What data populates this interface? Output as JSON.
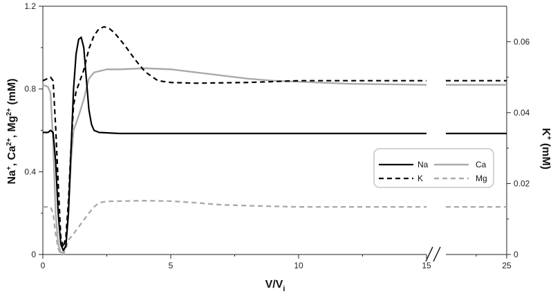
{
  "chart_data": {
    "type": "line",
    "xlabel_main": "V/V",
    "xlabel_sub": "i",
    "ylabel_left": [
      "Na",
      "+",
      ", Ca",
      "2+",
      ", Mg",
      "2+",
      " (mM)"
    ],
    "ylabel_right": [
      "K",
      "+",
      " (mM)"
    ],
    "x_segment1_range": [
      0,
      15
    ],
    "x_segment2_range": [
      15,
      25
    ],
    "x_ticks": [
      {
        "value": 0,
        "label": "0"
      },
      {
        "value": 5,
        "label": "5"
      },
      {
        "value": 10,
        "label": "10"
      },
      {
        "value": 15,
        "label": "15"
      },
      {
        "value": 25,
        "label": "25"
      }
    ],
    "ylim_left": [
      0,
      1.2
    ],
    "y_ticks_left": [
      {
        "value": 0,
        "label": "0"
      },
      {
        "value": 0.4,
        "label": "0.4"
      },
      {
        "value": 0.8,
        "label": "0.8"
      },
      {
        "value": 1.2,
        "label": "1.2"
      }
    ],
    "ylim_right": [
      0,
      0.07
    ],
    "y_ticks_right": [
      {
        "value": 0,
        "label": "0"
      },
      {
        "value": 0.02,
        "label": "0.02"
      },
      {
        "value": 0.04,
        "label": "0.04"
      },
      {
        "value": 0.06,
        "label": "0.06"
      }
    ],
    "legend_position": "right-middle",
    "series": [
      {
        "name": "Na",
        "axis": "left",
        "color": "#000000",
        "dash": "solid",
        "points": [
          [
            0,
            0.59
          ],
          [
            0.2,
            0.59
          ],
          [
            0.3,
            0.6
          ],
          [
            0.4,
            0.59
          ],
          [
            0.5,
            0.45
          ],
          [
            0.6,
            0.2
          ],
          [
            0.7,
            0.05
          ],
          [
            0.8,
            0.02
          ],
          [
            0.9,
            0.04
          ],
          [
            1.0,
            0.2
          ],
          [
            1.1,
            0.5
          ],
          [
            1.2,
            0.8
          ],
          [
            1.3,
            0.97
          ],
          [
            1.4,
            1.04
          ],
          [
            1.5,
            1.05
          ],
          [
            1.6,
            1.0
          ],
          [
            1.7,
            0.85
          ],
          [
            1.8,
            0.7
          ],
          [
            1.9,
            0.63
          ],
          [
            2.0,
            0.6
          ],
          [
            2.2,
            0.59
          ],
          [
            3,
            0.585
          ],
          [
            5,
            0.585
          ],
          [
            8,
            0.585
          ],
          [
            10,
            0.585
          ],
          [
            15,
            0.585
          ]
        ],
        "points_seg2": [
          [
            15,
            0.585
          ],
          [
            25,
            0.585
          ]
        ]
      },
      {
        "name": "Ca",
        "axis": "left",
        "color": "#aaaaaa",
        "dash": "solid",
        "points": [
          [
            0,
            0.82
          ],
          [
            0.2,
            0.81
          ],
          [
            0.3,
            0.78
          ],
          [
            0.4,
            0.55
          ],
          [
            0.5,
            0.2
          ],
          [
            0.6,
            0.05
          ],
          [
            0.7,
            0.01
          ],
          [
            0.8,
            0.01
          ],
          [
            0.9,
            0.05
          ],
          [
            1.0,
            0.2
          ],
          [
            1.1,
            0.45
          ],
          [
            1.2,
            0.6
          ],
          [
            1.4,
            0.67
          ],
          [
            1.6,
            0.75
          ],
          [
            1.8,
            0.85
          ],
          [
            2.0,
            0.88
          ],
          [
            2.5,
            0.895
          ],
          [
            3,
            0.895
          ],
          [
            4,
            0.9
          ],
          [
            5,
            0.895
          ],
          [
            6,
            0.88
          ],
          [
            7,
            0.865
          ],
          [
            8,
            0.85
          ],
          [
            9,
            0.84
          ],
          [
            10,
            0.835
          ],
          [
            12,
            0.825
          ],
          [
            15,
            0.82
          ]
        ],
        "points_seg2": [
          [
            15,
            0.82
          ],
          [
            25,
            0.82
          ]
        ]
      },
      {
        "name": "K",
        "axis": "right",
        "color": "#000000",
        "dash": "dashed",
        "points": [
          [
            0,
            0.049
          ],
          [
            0.3,
            0.05
          ],
          [
            0.4,
            0.049
          ],
          [
            0.5,
            0.036
          ],
          [
            0.6,
            0.02
          ],
          [
            0.7,
            0.005
          ],
          [
            0.8,
            0.002
          ],
          [
            0.9,
            0.005
          ],
          [
            1.0,
            0.015
          ],
          [
            1.1,
            0.03
          ],
          [
            1.2,
            0.042
          ],
          [
            1.3,
            0.046
          ],
          [
            1.4,
            0.048
          ],
          [
            1.6,
            0.052
          ],
          [
            1.8,
            0.058
          ],
          [
            2.0,
            0.0617
          ],
          [
            2.2,
            0.0637
          ],
          [
            2.4,
            0.0642
          ],
          [
            2.6,
            0.0637
          ],
          [
            2.8,
            0.0625
          ],
          [
            3.2,
            0.059
          ],
          [
            3.6,
            0.055
          ],
          [
            4.0,
            0.0515
          ],
          [
            4.5,
            0.049
          ],
          [
            5,
            0.0485
          ],
          [
            6,
            0.0483
          ],
          [
            8,
            0.0485
          ],
          [
            10,
            0.049
          ],
          [
            12,
            0.049
          ],
          [
            15,
            0.049
          ]
        ],
        "points_seg2": [
          [
            15,
            0.049
          ],
          [
            25,
            0.049
          ]
        ]
      },
      {
        "name": "Mg",
        "axis": "left",
        "color": "#aaaaaa",
        "dash": "dashed",
        "points": [
          [
            0,
            0.23
          ],
          [
            0.3,
            0.23
          ],
          [
            0.4,
            0.2
          ],
          [
            0.5,
            0.1
          ],
          [
            0.6,
            0.03
          ],
          [
            0.7,
            0.0
          ],
          [
            0.8,
            0.0
          ],
          [
            0.9,
            0.03
          ],
          [
            1.0,
            0.07
          ],
          [
            1.2,
            0.1
          ],
          [
            1.5,
            0.15
          ],
          [
            1.8,
            0.2
          ],
          [
            2.0,
            0.23
          ],
          [
            2.2,
            0.25
          ],
          [
            2.5,
            0.257
          ],
          [
            3,
            0.258
          ],
          [
            4,
            0.26
          ],
          [
            5,
            0.258
          ],
          [
            6,
            0.25
          ],
          [
            7,
            0.24
          ],
          [
            8,
            0.236
          ],
          [
            9,
            0.233
          ],
          [
            10,
            0.23
          ],
          [
            15,
            0.23
          ]
        ],
        "points_seg2": [
          [
            15,
            0.23
          ],
          [
            25,
            0.23
          ]
        ]
      }
    ]
  }
}
